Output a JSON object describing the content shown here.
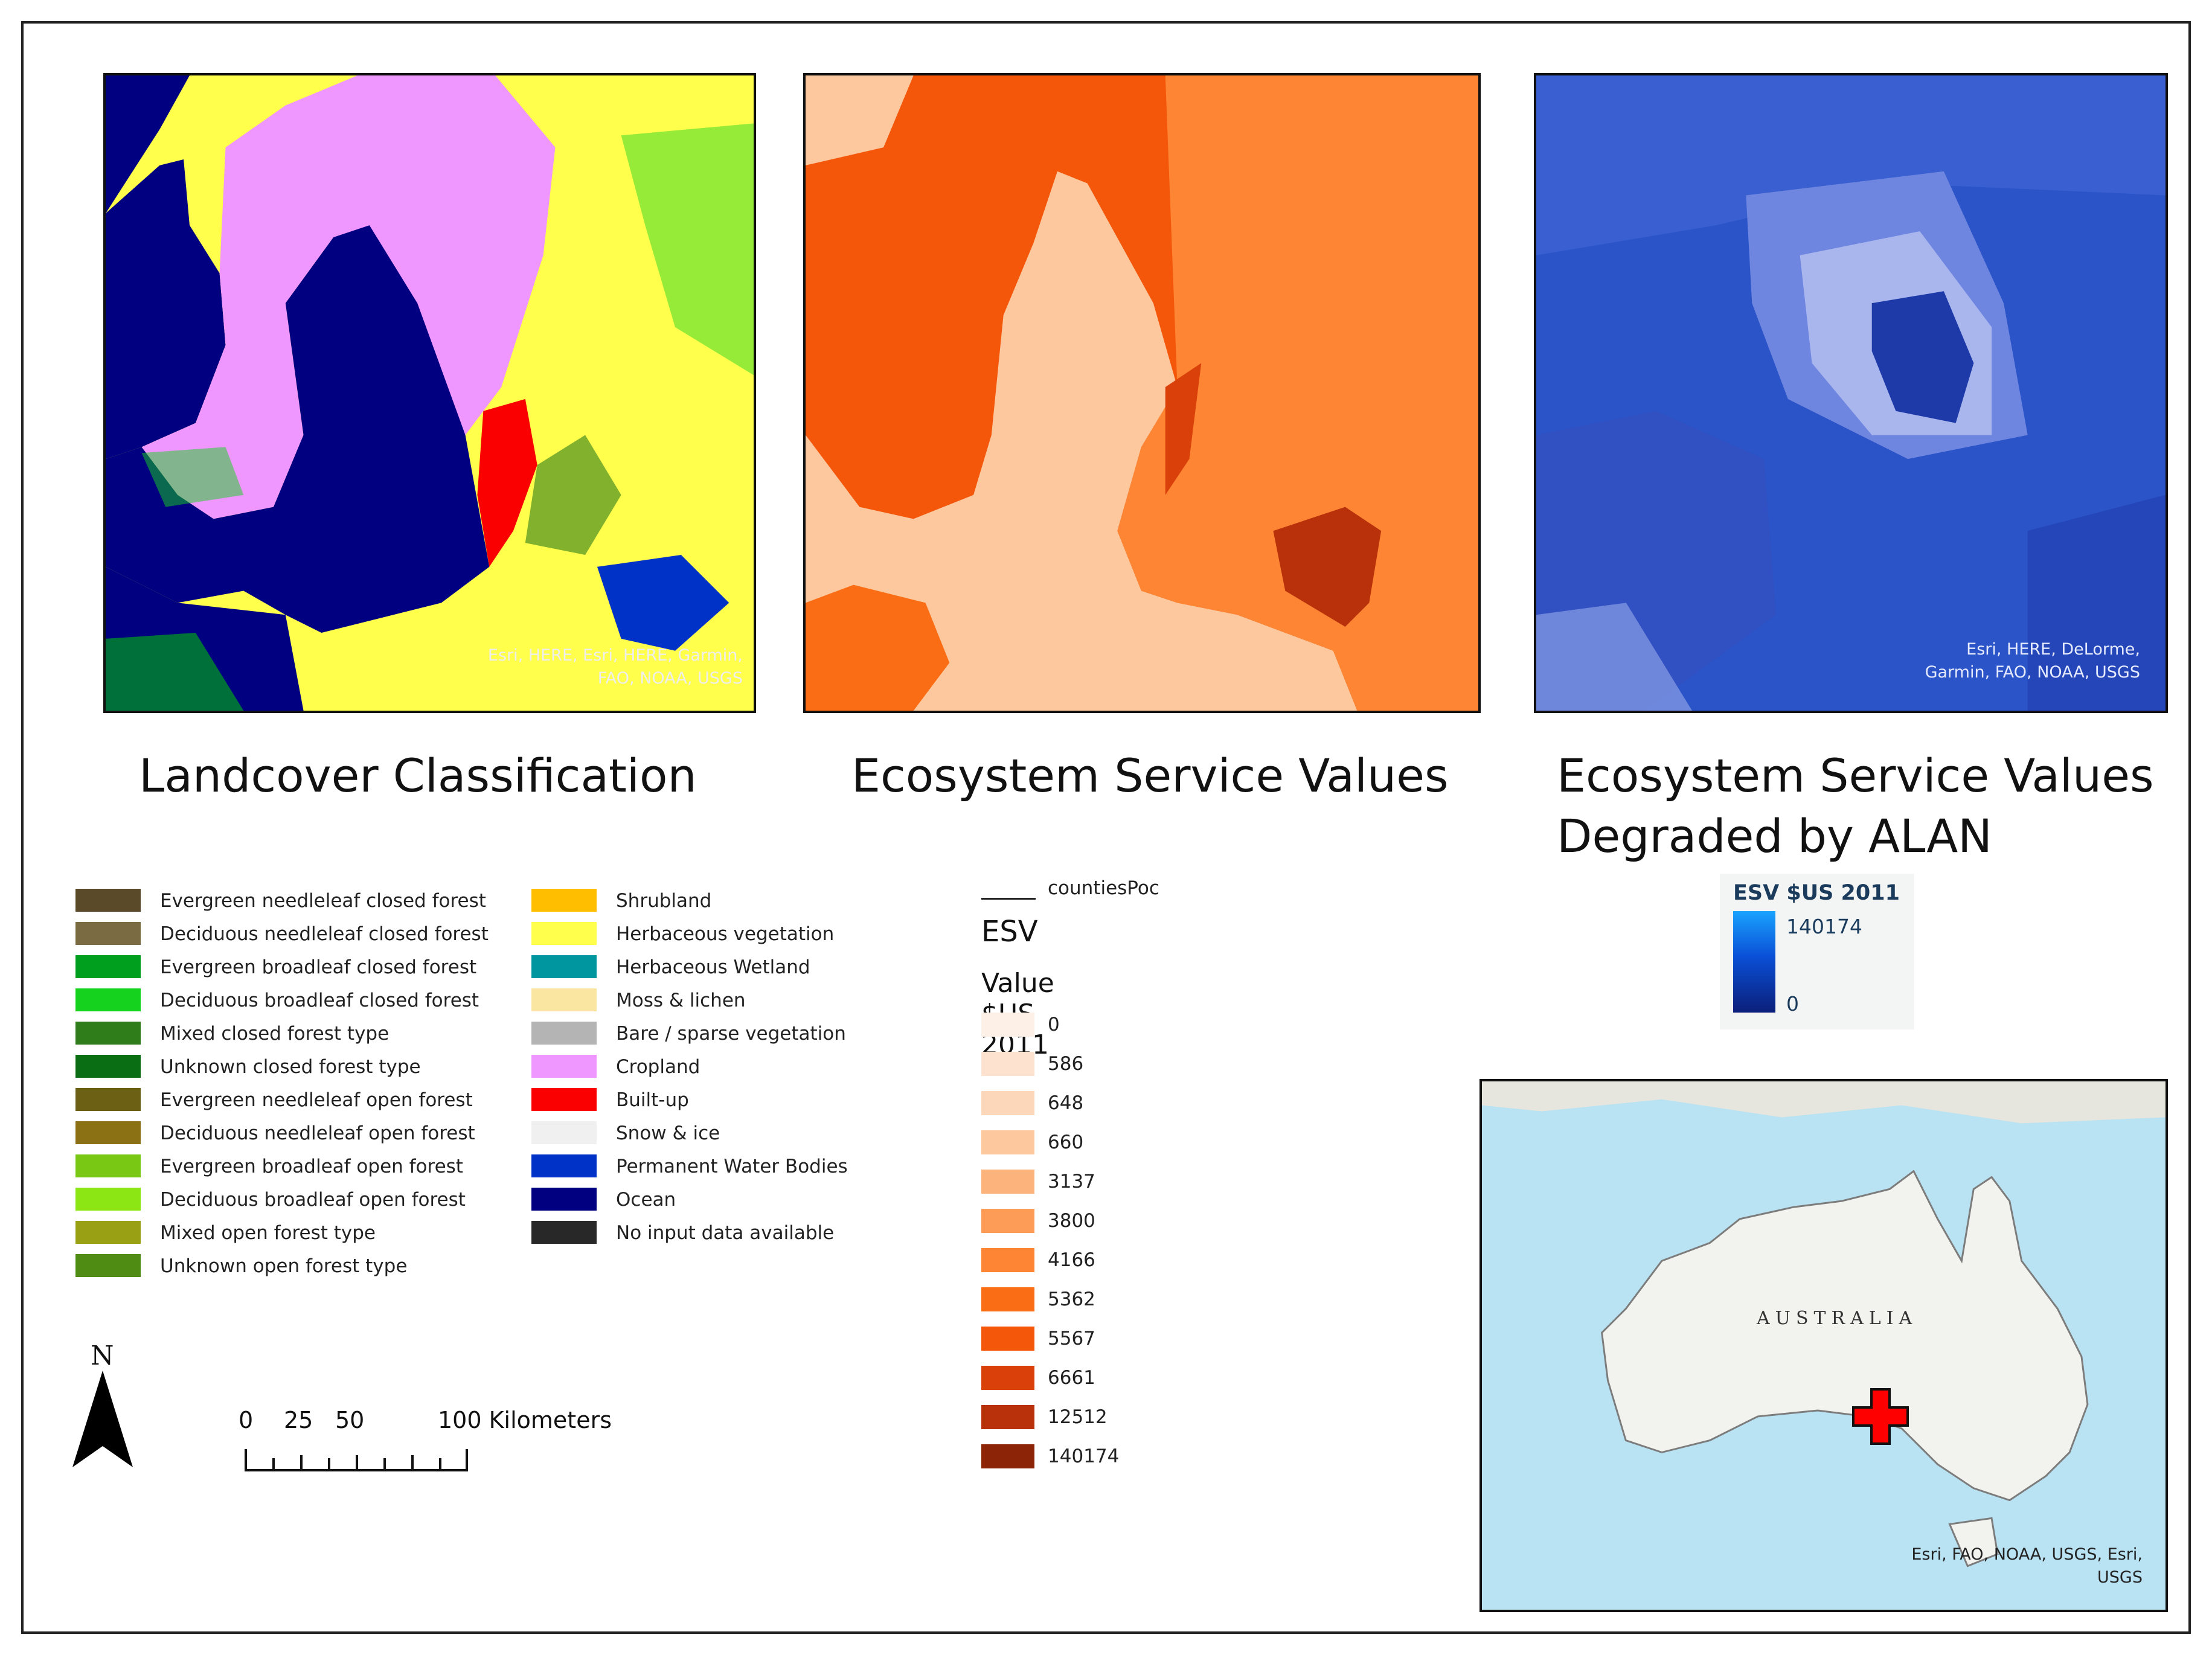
{
  "panels": {
    "landcover": {
      "title": "Landcover Classification",
      "attribution": [
        "Esri, HERE, Esri, HERE, Garmin,",
        "FAO, NOAA, USGS"
      ]
    },
    "esv": {
      "title": "Ecosystem Service Values"
    },
    "degraded": {
      "title_line1": "Ecosystem Service Values",
      "title_line2": "Degraded by ALAN",
      "attribution": [
        "Esri, HERE, DeLorme,",
        "Garmin, FAO, NOAA, USGS"
      ]
    },
    "inset": {
      "label": "AUSTRALIA",
      "attribution": [
        "Esri, FAO, NOAA, USGS, Esri,",
        "USGS"
      ]
    }
  },
  "landcover_legend": {
    "column1": [
      {
        "label": "Evergreen needleleaf closed forest",
        "color": "#5a4a2a"
      },
      {
        "label": "Deciduous needleleaf closed forest",
        "color": "#7a6b42"
      },
      {
        "label": "Evergreen broadleaf closed forest",
        "color": "#00a01e"
      },
      {
        "label": "Deciduous broadleaf closed forest",
        "color": "#14d21e"
      },
      {
        "label": "Mixed closed forest type",
        "color": "#2e7d1a"
      },
      {
        "label": "Unknown closed forest type",
        "color": "#0a6e14"
      },
      {
        "label": "Evergreen needleleaf open forest",
        "color": "#6b6014"
      },
      {
        "label": "Deciduous needleleaf open forest",
        "color": "#8c7014"
      },
      {
        "label": "Evergreen broadleaf open forest",
        "color": "#78c814"
      },
      {
        "label": "Deciduous broadleaf open forest",
        "color": "#8ce614"
      },
      {
        "label": "Mixed open forest type",
        "color": "#9aa014"
      },
      {
        "label": "Unknown open forest type",
        "color": "#4f8c14"
      }
    ],
    "column2": [
      {
        "label": "Shrubland",
        "color": "#ffbe00"
      },
      {
        "label": "Herbaceous vegetation",
        "color": "#ffff4c"
      },
      {
        "label": "Herbaceous Wetland",
        "color": "#0096a0"
      },
      {
        "label": "Moss & lichen",
        "color": "#fae6a0"
      },
      {
        "label": "Bare / sparse vegetation",
        "color": "#b4b4b4"
      },
      {
        "label": "Cropland",
        "color": "#f096ff"
      },
      {
        "label": "Built-up",
        "color": "#fa0000"
      },
      {
        "label": "Snow & ice",
        "color": "#f0f0f0"
      },
      {
        "label": "Permanent Water Bodies",
        "color": "#0032c8"
      },
      {
        "label": "Ocean",
        "color": "#000080"
      },
      {
        "label": "No input data available",
        "color": "#282828"
      }
    ]
  },
  "esv_legend": {
    "layer_label": "countiesPoc",
    "heading": "ESV",
    "subheading": "Value $US 2011",
    "classes": [
      {
        "label": "0",
        "color": "#fdf0e6"
      },
      {
        "label": "586",
        "color": "#fde2d0"
      },
      {
        "label": "648",
        "color": "#fdd7b9"
      },
      {
        "label": "660",
        "color": "#fdc89e"
      },
      {
        "label": "3137",
        "color": "#fdb37c"
      },
      {
        "label": "3800",
        "color": "#fd9c56"
      },
      {
        "label": "4166",
        "color": "#fd8533"
      },
      {
        "label": "5362",
        "color": "#fb6d14"
      },
      {
        "label": "5567",
        "color": "#f4560a"
      },
      {
        "label": "6661",
        "color": "#d9400a"
      },
      {
        "label": "12512",
        "color": "#b8310a"
      },
      {
        "label": "140174",
        "color": "#8c2507"
      }
    ]
  },
  "degraded_legend": {
    "heading": "ESV $US 2011",
    "max": "140174",
    "min": "0"
  },
  "north_arrow": {
    "label": "N"
  },
  "scale_bar": {
    "ticks": [
      "0",
      "25",
      "50",
      "100 Kilometers"
    ]
  }
}
